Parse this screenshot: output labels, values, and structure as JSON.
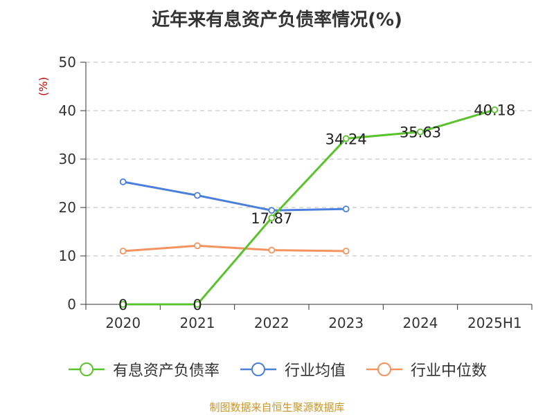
{
  "title": "近年来有息资产负债率情况(%)",
  "source": "制图数据来自恒生聚源数据库",
  "chart_data": {
    "type": "line",
    "title": "近年来有息资产负债率情况(%)",
    "ylabel": "(%)",
    "xlabel": "",
    "categories": [
      "2020",
      "2021",
      "2022",
      "2023",
      "2024",
      "2025H1"
    ],
    "ylim": [
      0,
      50
    ],
    "yticks": [
      0,
      10,
      20,
      30,
      40,
      50
    ],
    "grid": true,
    "legend_position": "bottom",
    "series": [
      {
        "name": "有息资产负债率",
        "color": "#5ac22b",
        "values": [
          0,
          0,
          17.87,
          34.24,
          35.63,
          40.18
        ],
        "labels": [
          "0",
          "0",
          "17.87",
          "34.24",
          "35.63",
          "40.18"
        ]
      },
      {
        "name": "行业均值",
        "color": "#4a7fdc",
        "values": [
          25.3,
          22.5,
          19.4,
          19.7,
          null,
          null
        ],
        "labels": null
      },
      {
        "name": "行业中位数",
        "color": "#f4935e",
        "values": [
          11.0,
          12.1,
          11.2,
          11.0,
          null,
          null
        ],
        "labels": null
      }
    ]
  }
}
